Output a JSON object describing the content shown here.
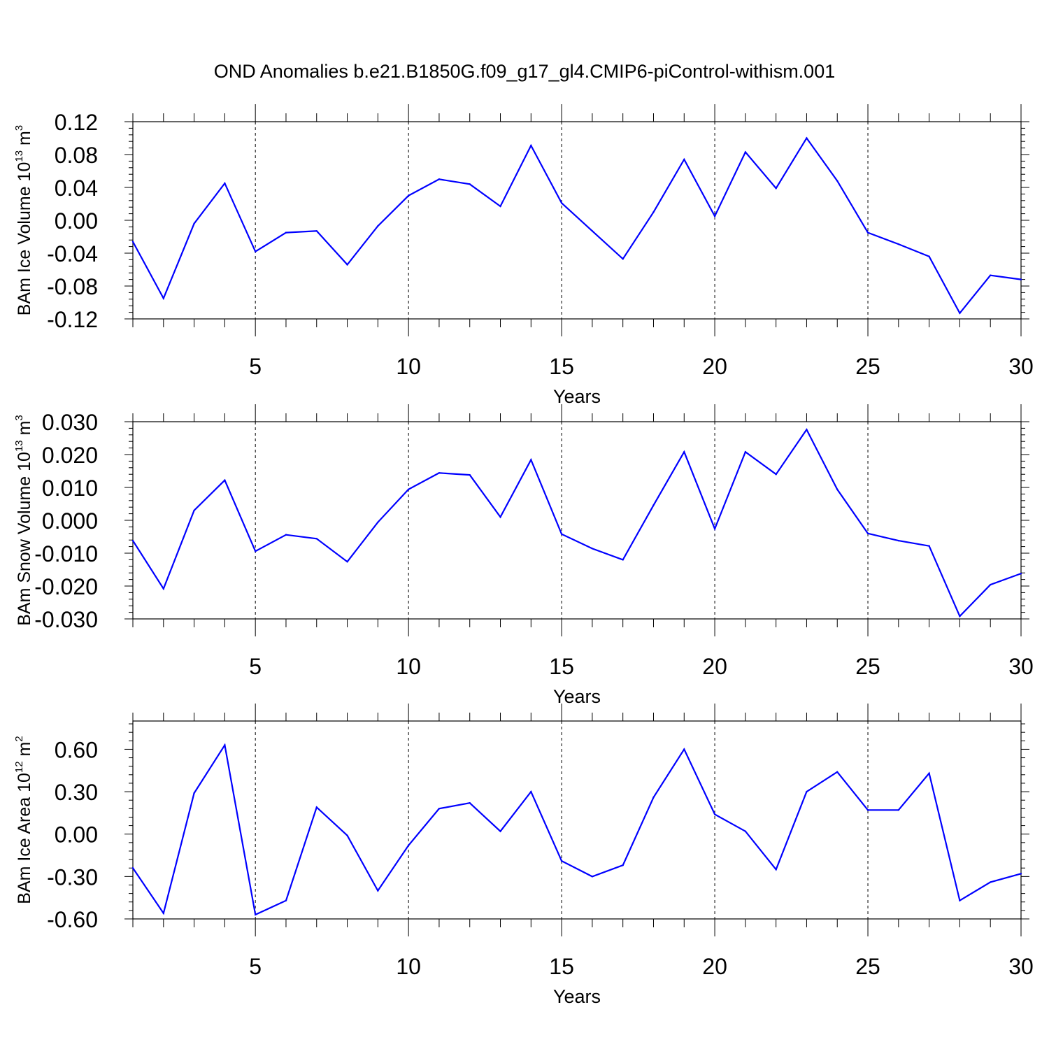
{
  "title": "OND Anomalies b.e21.B1850G.f09_g17_gl4.CMIP6-piControl-withism.001",
  "chart_data": [
    {
      "type": "line",
      "ylabel": {
        "prefix": "BAm Ice Volume 10",
        "exp": "13",
        "unit": " m",
        "unitExp": "3"
      },
      "xlabel": "Years",
      "xlim": [
        1,
        30
      ],
      "ylim": [
        -0.12,
        0.12
      ],
      "x_ticks": [
        5,
        10,
        15,
        20,
        25,
        30
      ],
      "x_tick_labels": [
        "5",
        "10",
        "15",
        "20",
        "25",
        "30"
      ],
      "y_ticks": [
        -0.12,
        -0.08,
        -0.04,
        0.0,
        0.04,
        0.08,
        0.12
      ],
      "y_tick_labels": [
        "-0.12",
        "-0.08",
        "-0.04",
        "0.00",
        "0.04",
        "0.08",
        "0.12"
      ],
      "y_minor_step": 0.008,
      "grid": "vertical dashed at major x ticks",
      "color": "#0000ff",
      "x": [
        1,
        2,
        3,
        4,
        5,
        6,
        7,
        8,
        9,
        10,
        11,
        12,
        13,
        14,
        15,
        16,
        17,
        18,
        19,
        20,
        21,
        22,
        23,
        24,
        25,
        26,
        27,
        28,
        29,
        30
      ],
      "values": [
        -0.026,
        -0.095,
        -0.004,
        0.045,
        -0.038,
        -0.015,
        -0.013,
        -0.054,
        -0.007,
        0.03,
        0.05,
        0.044,
        0.017,
        0.091,
        0.021,
        -0.013,
        -0.047,
        0.01,
        0.074,
        0.005,
        0.083,
        0.039,
        0.1,
        0.048,
        -0.015,
        -0.029,
        -0.044,
        -0.113,
        -0.067,
        -0.072
      ]
    },
    {
      "type": "line",
      "ylabel": {
        "prefix": "BAm Snow Volume 10",
        "exp": "13",
        "unit": " m",
        "unitExp": "3"
      },
      "xlabel": "Years",
      "xlim": [
        1,
        30
      ],
      "ylim": [
        -0.03,
        0.03
      ],
      "x_ticks": [
        5,
        10,
        15,
        20,
        25,
        30
      ],
      "x_tick_labels": [
        "5",
        "10",
        "15",
        "20",
        "25",
        "30"
      ],
      "y_ticks": [
        -0.03,
        -0.02,
        -0.01,
        0.0,
        0.01,
        0.02,
        0.03
      ],
      "y_tick_labels": [
        "-0.030",
        "-0.020",
        "-0.010",
        "0.000",
        "0.010",
        "0.020",
        "0.030"
      ],
      "y_minor_step": 0.002,
      "grid": "vertical dashed at major x ticks",
      "color": "#0000ff",
      "x": [
        1,
        2,
        3,
        4,
        5,
        6,
        7,
        8,
        9,
        10,
        11,
        12,
        13,
        14,
        15,
        16,
        17,
        18,
        19,
        20,
        21,
        22,
        23,
        24,
        25,
        26,
        27,
        28,
        29,
        30
      ],
      "values": [
        -0.0062,
        -0.0208,
        0.003,
        0.0122,
        -0.0094,
        -0.0044,
        -0.0056,
        -0.0126,
        -0.0006,
        0.0094,
        0.0144,
        0.0138,
        0.001,
        0.0184,
        -0.0042,
        -0.0086,
        -0.012,
        0.0046,
        0.0208,
        -0.0026,
        0.0208,
        0.014,
        0.0276,
        0.0094,
        -0.004,
        -0.0062,
        -0.0078,
        -0.0292,
        -0.0196,
        -0.0162
      ]
    },
    {
      "type": "line",
      "ylabel": {
        "prefix": "BAm Ice Area 10",
        "exp": "12",
        "unit": " m",
        "unitExp": "2"
      },
      "xlabel": "Years",
      "xlim": [
        1,
        30
      ],
      "ylim": [
        -0.6,
        0.8
      ],
      "x_ticks": [
        5,
        10,
        15,
        20,
        25,
        30
      ],
      "x_tick_labels": [
        "5",
        "10",
        "15",
        "20",
        "25",
        "30"
      ],
      "y_ticks": [
        -0.6,
        -0.3,
        0.0,
        0.3,
        0.6
      ],
      "y_tick_labels": [
        "-0.60",
        "-0.30",
        "0.00",
        "0.30",
        "0.60"
      ],
      "y_minor_step": 0.06,
      "grid": "vertical dashed at major x ticks",
      "color": "#0000ff",
      "x": [
        1,
        2,
        3,
        4,
        5,
        6,
        7,
        8,
        9,
        10,
        11,
        12,
        13,
        14,
        15,
        16,
        17,
        18,
        19,
        20,
        21,
        22,
        23,
        24,
        25,
        26,
        27,
        28,
        29,
        30
      ],
      "values": [
        -0.24,
        -0.56,
        0.29,
        0.63,
        -0.57,
        -0.47,
        0.19,
        -0.01,
        -0.4,
        -0.08,
        0.18,
        0.22,
        0.02,
        0.3,
        -0.19,
        -0.3,
        -0.22,
        0.26,
        0.6,
        0.14,
        0.02,
        -0.25,
        0.3,
        0.44,
        0.17,
        0.17,
        0.43,
        -0.47,
        -0.34,
        -0.28
      ]
    }
  ]
}
